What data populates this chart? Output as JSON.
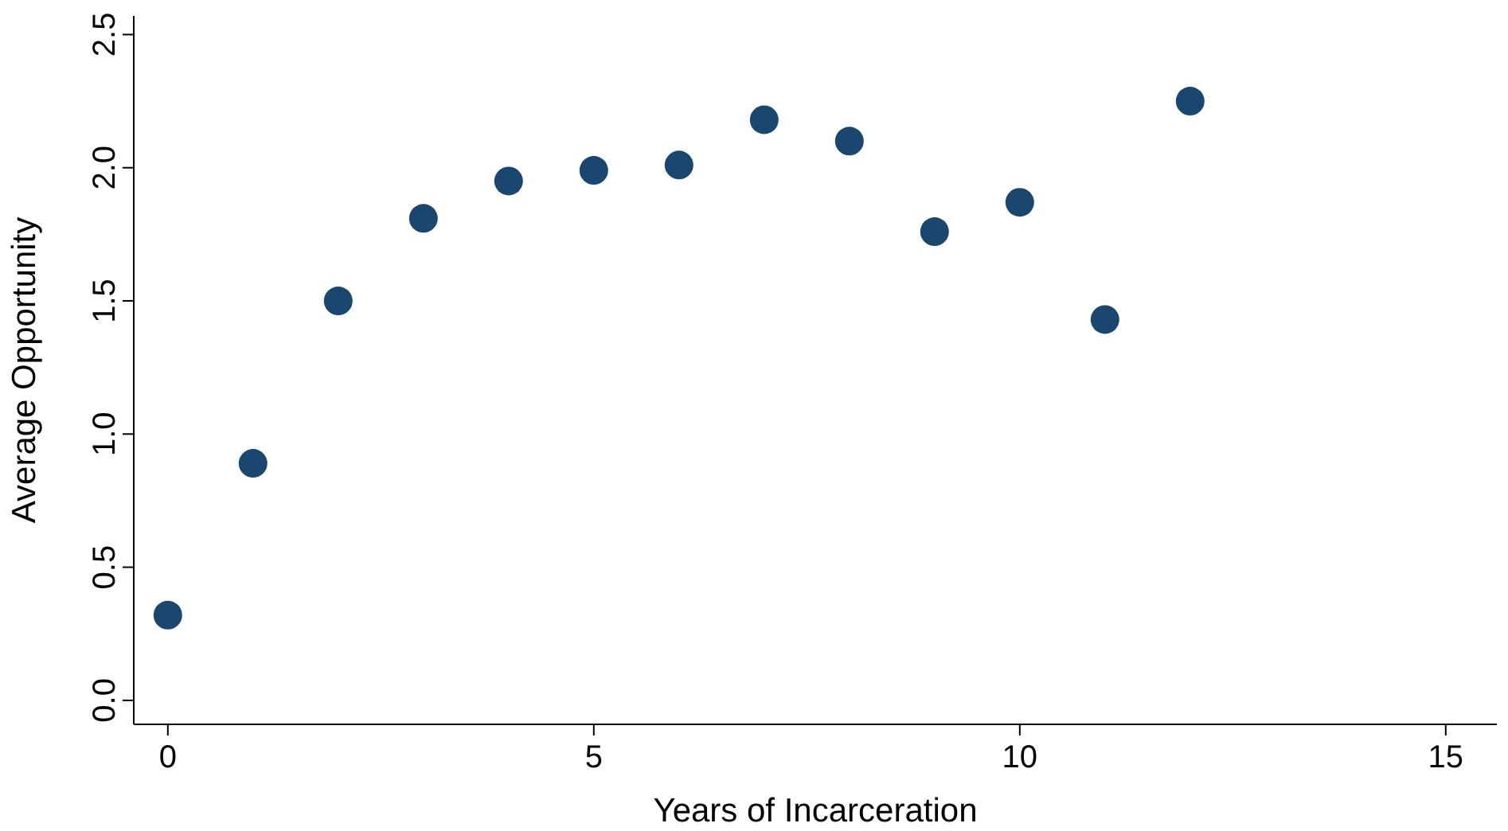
{
  "chart_data": {
    "type": "scatter",
    "xlabel": "Years of Incarceration",
    "ylabel": "Average Opportunity",
    "x": [
      0,
      1,
      2,
      3,
      4,
      5,
      6,
      7,
      8,
      9,
      10,
      11,
      12
    ],
    "series": [
      {
        "color": "#1a476f",
        "values": [
          0.32,
          0.89,
          1.5,
          1.81,
          1.95,
          1.99,
          2.01,
          2.18,
          2.1,
          1.76,
          1.87,
          1.43,
          2.25
        ]
      }
    ],
    "xlim": [
      -0.4,
      15.6
    ],
    "xticks": [
      0,
      5,
      10,
      15
    ],
    "ylim": [
      -0.09,
      2.57
    ],
    "yticks": [
      {
        "value": 0,
        "label": "0.0"
      },
      {
        "value": 0.5,
        "label": "0.5"
      },
      {
        "value": 1,
        "label": "1.0"
      },
      {
        "value": 1.5,
        "label": "1.5"
      },
      {
        "value": 2,
        "label": "2.0"
      },
      {
        "value": 2.5,
        "label": "2.5"
      }
    ],
    "marker": "circle"
  }
}
